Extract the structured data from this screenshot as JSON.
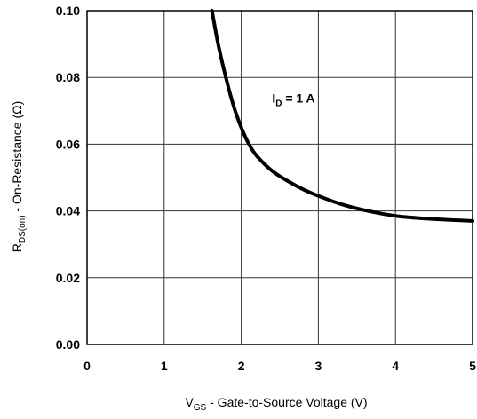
{
  "chart_data": {
    "type": "line",
    "x_ticks": [
      "0",
      "1",
      "2",
      "3",
      "4",
      "5"
    ],
    "y_ticks": [
      "0.00",
      "0.02",
      "0.04",
      "0.06",
      "0.08",
      "0.10"
    ],
    "xlim": [
      0,
      5
    ],
    "ylim": [
      0,
      0.1
    ],
    "grid": true,
    "xlabel": {
      "main": "V",
      "sub": "GS",
      "rest": " - Gate-to-Source Voltage (V)"
    },
    "ylabel": {
      "main": "R",
      "sub": "DS(on)",
      "rest": " - On-Resistance (Ω)"
    },
    "annotation": {
      "main": "I",
      "sub": "D",
      "rest": " = 1 A",
      "x": 2.4,
      "y": 0.0725
    },
    "series": [
      {
        "x": [
          1.62,
          1.7,
          1.8,
          1.9,
          2.0,
          2.1,
          2.2,
          2.4,
          2.6,
          2.8,
          3.0,
          3.3,
          3.6,
          4.0,
          4.4,
          4.8,
          5.0
        ],
        "y": [
          0.1,
          0.09,
          0.08,
          0.0715,
          0.065,
          0.06,
          0.0565,
          0.052,
          0.049,
          0.0465,
          0.0445,
          0.042,
          0.0402,
          0.0385,
          0.0377,
          0.0372,
          0.037
        ]
      }
    ]
  }
}
